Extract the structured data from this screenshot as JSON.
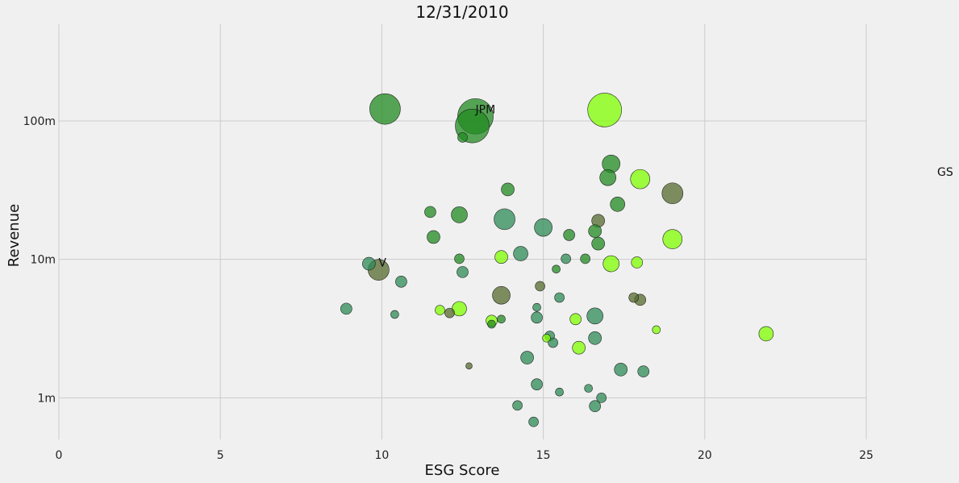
{
  "chart_data": {
    "type": "scatter",
    "title": "12/31/2010",
    "xlabel": "ESG Score",
    "ylabel": "Revenue",
    "x_scale": "linear",
    "y_scale": "log",
    "xlim": [
      0,
      25
    ],
    "ylim": [
      0.5,
      500
    ],
    "x_ticks": [
      0,
      5,
      10,
      15,
      20,
      25
    ],
    "x_tick_labels": [
      "0",
      "5",
      "10",
      "15",
      "20",
      "25"
    ],
    "y_ticks": [
      1,
      10,
      100
    ],
    "y_tick_labels": [
      "1m",
      "10m",
      "100m"
    ],
    "grid": true,
    "colors": {
      "dark_green": "#228b22",
      "lime": "#7fff00",
      "olive": "#556b2f",
      "teal": "#2e8b57",
      "background": "#f0f0f0",
      "grid": "#cbcbcb"
    },
    "points": [
      {
        "x": 10.1,
        "y": 122,
        "size": 17,
        "color": "dark_green"
      },
      {
        "x": 12.9,
        "y": 108,
        "size": 20,
        "color": "dark_green",
        "label": "JPM"
      },
      {
        "x": 12.8,
        "y": 92,
        "size": 19,
        "color": "dark_green"
      },
      {
        "x": 12.5,
        "y": 76,
        "size": 4,
        "color": "dark_green"
      },
      {
        "x": 16.9,
        "y": 120,
        "size": 19,
        "color": "lime"
      },
      {
        "x": 17.1,
        "y": 49,
        "size": 9,
        "color": "dark_green"
      },
      {
        "x": 17.0,
        "y": 39,
        "size": 8,
        "color": "dark_green"
      },
      {
        "x": 18.0,
        "y": 38,
        "size": 10,
        "color": "lime"
      },
      {
        "x": 19.0,
        "y": 30,
        "size": 11,
        "color": "olive"
      },
      {
        "x": 13.9,
        "y": 32,
        "size": 6,
        "color": "dark_green"
      },
      {
        "x": 17.3,
        "y": 25,
        "size": 7,
        "color": "dark_green"
      },
      {
        "x": 11.5,
        "y": 22,
        "size": 5,
        "color": "dark_green"
      },
      {
        "x": 12.4,
        "y": 21,
        "size": 8,
        "color": "dark_green"
      },
      {
        "x": 13.8,
        "y": 19.5,
        "size": 11,
        "color": "teal"
      },
      {
        "x": 15.0,
        "y": 17,
        "size": 9,
        "color": "teal"
      },
      {
        "x": 16.7,
        "y": 19,
        "size": 6,
        "color": "olive"
      },
      {
        "x": 16.6,
        "y": 16,
        "size": 6,
        "color": "dark_green"
      },
      {
        "x": 15.8,
        "y": 15,
        "size": 5,
        "color": "dark_green"
      },
      {
        "x": 11.6,
        "y": 14.5,
        "size": 6,
        "color": "dark_green"
      },
      {
        "x": 19.0,
        "y": 14,
        "size": 10,
        "color": "lime"
      },
      {
        "x": 16.7,
        "y": 13,
        "size": 6,
        "color": "dark_green"
      },
      {
        "x": 14.3,
        "y": 11,
        "size": 7,
        "color": "teal"
      },
      {
        "x": 13.7,
        "y": 10.4,
        "size": 6,
        "color": "lime"
      },
      {
        "x": 12.4,
        "y": 10.1,
        "size": 4,
        "color": "dark_green"
      },
      {
        "x": 15.7,
        "y": 10.1,
        "size": 4,
        "color": "teal"
      },
      {
        "x": 16.3,
        "y": 10.1,
        "size": 4,
        "color": "dark_green"
      },
      {
        "x": 9.6,
        "y": 9.3,
        "size": 6,
        "color": "teal"
      },
      {
        "x": 17.1,
        "y": 9.3,
        "size": 8,
        "color": "lime"
      },
      {
        "x": 17.9,
        "y": 9.5,
        "size": 5,
        "color": "lime"
      },
      {
        "x": 9.9,
        "y": 8.4,
        "size": 11,
        "color": "olive",
        "label": "V"
      },
      {
        "x": 15.4,
        "y": 8.5,
        "size": 3,
        "color": "dark_green"
      },
      {
        "x": 12.5,
        "y": 8.1,
        "size": 5,
        "color": "teal"
      },
      {
        "x": 10.6,
        "y": 6.9,
        "size": 5,
        "color": "teal"
      },
      {
        "x": 14.9,
        "y": 6.4,
        "size": 4,
        "color": "olive"
      },
      {
        "x": 13.7,
        "y": 5.5,
        "size": 9,
        "color": "olive"
      },
      {
        "x": 15.5,
        "y": 5.3,
        "size": 4,
        "color": "teal"
      },
      {
        "x": 17.8,
        "y": 5.3,
        "size": 4,
        "color": "olive"
      },
      {
        "x": 18.0,
        "y": 5.1,
        "size": 5,
        "color": "olive"
      },
      {
        "x": 8.9,
        "y": 4.4,
        "size": 5,
        "color": "teal"
      },
      {
        "x": 11.8,
        "y": 4.3,
        "size": 4,
        "color": "lime"
      },
      {
        "x": 12.4,
        "y": 4.4,
        "size": 7,
        "color": "lime"
      },
      {
        "x": 12.1,
        "y": 4.1,
        "size": 4,
        "color": "olive"
      },
      {
        "x": 10.4,
        "y": 4.0,
        "size": 3,
        "color": "teal"
      },
      {
        "x": 14.8,
        "y": 4.5,
        "size": 3,
        "color": "teal"
      },
      {
        "x": 14.8,
        "y": 3.8,
        "size": 5,
        "color": "teal"
      },
      {
        "x": 16.0,
        "y": 3.7,
        "size": 5,
        "color": "lime"
      },
      {
        "x": 13.4,
        "y": 3.6,
        "size": 5,
        "color": "lime"
      },
      {
        "x": 13.7,
        "y": 3.7,
        "size": 3,
        "color": "dark_green"
      },
      {
        "x": 13.4,
        "y": 3.4,
        "size": 3,
        "color": "dark_green"
      },
      {
        "x": 16.6,
        "y": 3.9,
        "size": 8,
        "color": "teal"
      },
      {
        "x": 18.5,
        "y": 3.1,
        "size": 3,
        "color": "lime"
      },
      {
        "x": 21.9,
        "y": 2.9,
        "size": 7,
        "color": "lime"
      },
      {
        "x": 15.1,
        "y": 2.7,
        "size": 3,
        "color": "lime"
      },
      {
        "x": 15.2,
        "y": 2.8,
        "size": 4,
        "color": "teal"
      },
      {
        "x": 15.3,
        "y": 2.5,
        "size": 4,
        "color": "teal"
      },
      {
        "x": 16.6,
        "y": 2.7,
        "size": 6,
        "color": "teal"
      },
      {
        "x": 16.1,
        "y": 2.3,
        "size": 6,
        "color": "lime"
      },
      {
        "x": 14.5,
        "y": 1.95,
        "size": 6,
        "color": "teal"
      },
      {
        "x": 12.7,
        "y": 1.7,
        "size": 2,
        "color": "olive"
      },
      {
        "x": 17.4,
        "y": 1.6,
        "size": 6,
        "color": "teal"
      },
      {
        "x": 18.1,
        "y": 1.55,
        "size": 5,
        "color": "teal"
      },
      {
        "x": 14.8,
        "y": 1.25,
        "size": 5,
        "color": "teal"
      },
      {
        "x": 15.5,
        "y": 1.1,
        "size": 3,
        "color": "teal"
      },
      {
        "x": 16.4,
        "y": 1.17,
        "size": 3,
        "color": "teal"
      },
      {
        "x": 16.8,
        "y": 1.0,
        "size": 4,
        "color": "teal"
      },
      {
        "x": 14.2,
        "y": 0.88,
        "size": 4,
        "color": "teal"
      },
      {
        "x": 16.6,
        "y": 0.87,
        "size": 5,
        "color": "teal"
      },
      {
        "x": 14.7,
        "y": 0.67,
        "size": 4,
        "color": "teal"
      }
    ],
    "annotations": [
      {
        "text": "GS",
        "x": 27.2,
        "y": 43
      }
    ]
  }
}
